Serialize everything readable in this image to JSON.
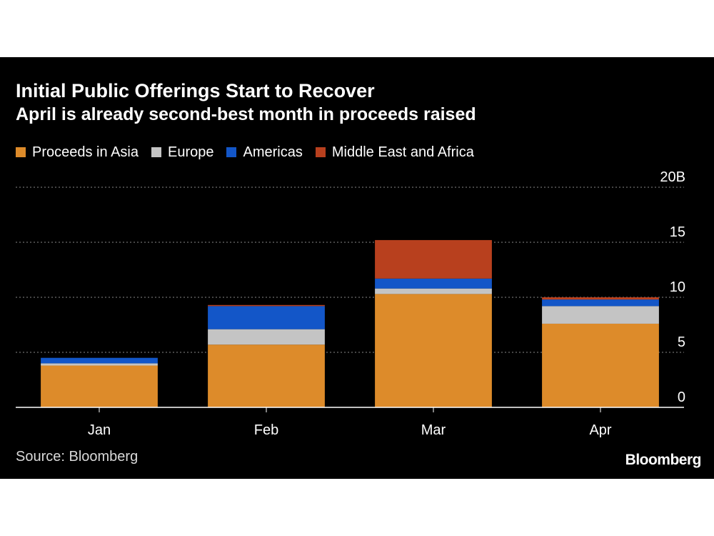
{
  "colors": {
    "background": "#000000"
  },
  "chart_data": {
    "type": "bar",
    "stacked": true,
    "title": "Initial Public Offerings Start to Recover",
    "subtitle": "April is already second-best month in proceeds raised",
    "categories": [
      "Jan",
      "Feb",
      "Mar",
      "Apr"
    ],
    "series": [
      {
        "name": "Proceeds in Asia",
        "color": "#dd8b2a",
        "values": [
          3.8,
          5.7,
          10.3,
          7.6
        ]
      },
      {
        "name": "Europe",
        "color": "#c4c4c4",
        "values": [
          0.2,
          1.4,
          0.5,
          1.6
        ]
      },
      {
        "name": "Americas",
        "color": "#1356c8",
        "values": [
          0.5,
          2.1,
          0.9,
          0.6
        ]
      },
      {
        "name": "Middle East and Africa",
        "color": "#b8401e",
        "values": [
          0.0,
          0.1,
          3.5,
          0.2
        ]
      }
    ],
    "ylim": [
      0,
      20
    ],
    "yticks": [
      {
        "value": 0,
        "label": "0"
      },
      {
        "value": 5,
        "label": "5"
      },
      {
        "value": 10,
        "label": "10"
      },
      {
        "value": 15,
        "label": "15"
      },
      {
        "value": 20,
        "label": "20B"
      }
    ],
    "grid": true,
    "legend_position": "top-left",
    "source": "Source: Bloomberg",
    "brand": "Bloomberg"
  }
}
